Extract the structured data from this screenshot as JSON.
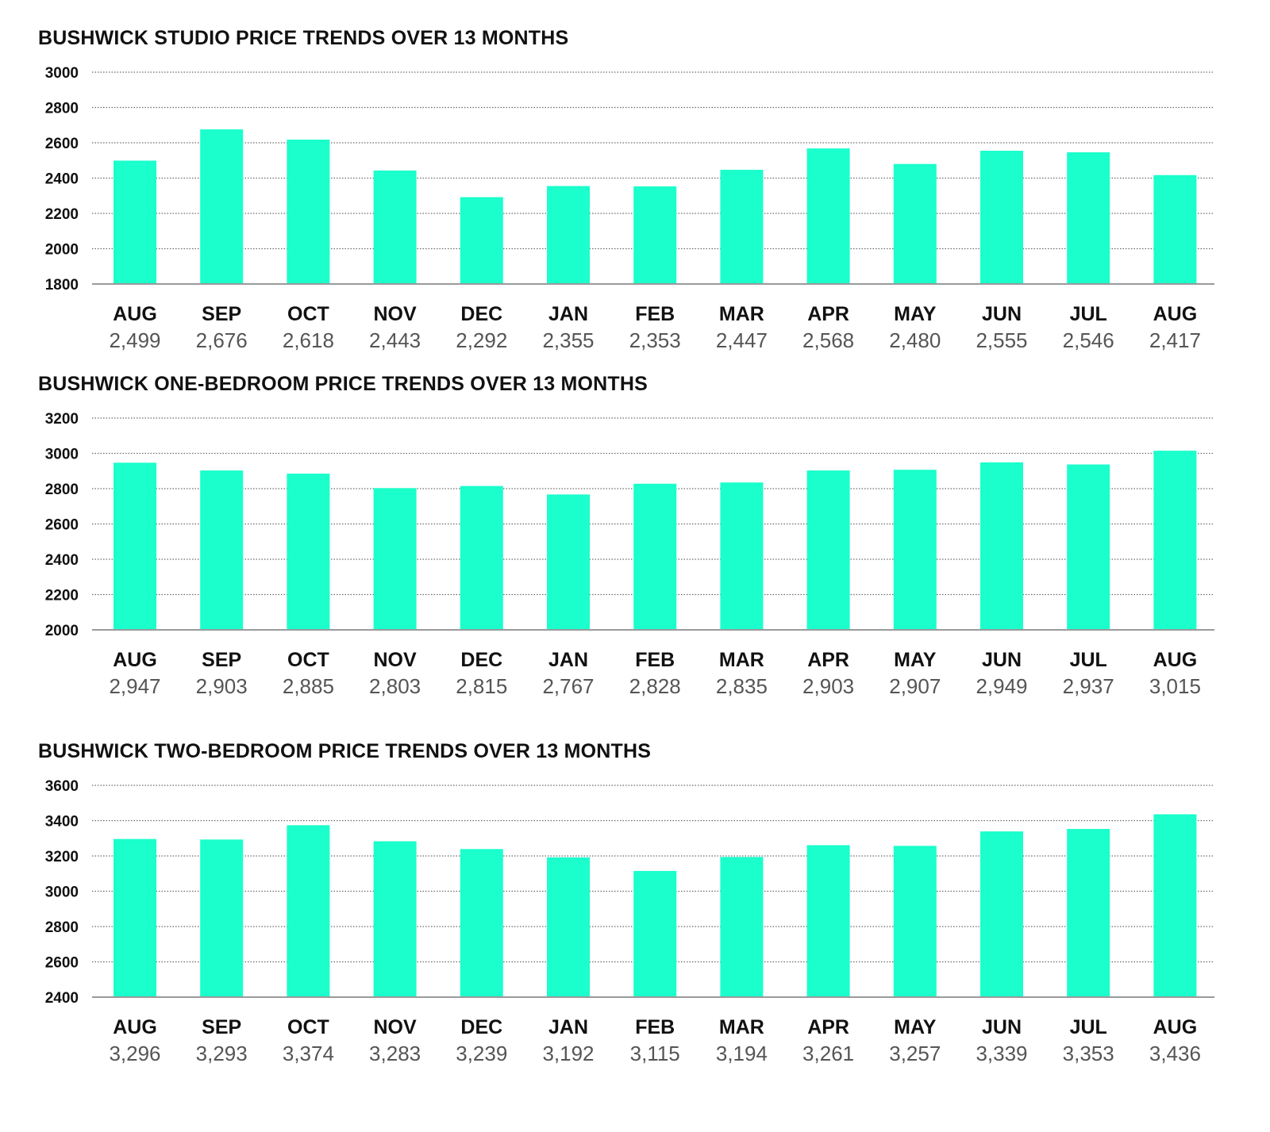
{
  "colors": {
    "bar": "#1AFFCB",
    "grid": "#6b6b6b",
    "axis": "#9a9a9a",
    "value_text": "#555555"
  },
  "chart_data": [
    {
      "type": "bar",
      "title": "BUSHWICK STUDIO PRICE TRENDS OVER 13 MONTHS",
      "categories": [
        "AUG",
        "SEP",
        "OCT",
        "NOV",
        "DEC",
        "JAN",
        "FEB",
        "MAR",
        "APR",
        "MAY",
        "JUN",
        "JUL",
        "AUG"
      ],
      "values": [
        2499,
        2676,
        2618,
        2443,
        2292,
        2355,
        2353,
        2447,
        2568,
        2480,
        2555,
        2546,
        2417
      ],
      "value_labels": [
        "2,499",
        "2,676",
        "2,618",
        "2,443",
        "2,292",
        "2,355",
        "2,353",
        "2,447",
        "2,568",
        "2,480",
        "2,555",
        "2,546",
        "2,417"
      ],
      "ylim": [
        1800,
        3000
      ],
      "yticks": [
        1800,
        2000,
        2200,
        2400,
        2600,
        2800,
        3000
      ],
      "grid": true,
      "xlabel": "",
      "ylabel": ""
    },
    {
      "type": "bar",
      "title": "BUSHWICK ONE-BEDROOM PRICE TRENDS OVER 13 MONTHS",
      "categories": [
        "AUG",
        "SEP",
        "OCT",
        "NOV",
        "DEC",
        "JAN",
        "FEB",
        "MAR",
        "APR",
        "MAY",
        "JUN",
        "JUL",
        "AUG"
      ],
      "values": [
        2947,
        2903,
        2885,
        2803,
        2815,
        2767,
        2828,
        2835,
        2903,
        2907,
        2949,
        2937,
        3015
      ],
      "value_labels": [
        "2,947",
        "2,903",
        "2,885",
        "2,803",
        "2,815",
        "2,767",
        "2,828",
        "2,835",
        "2,903",
        "2,907",
        "2,949",
        "2,937",
        "3,015"
      ],
      "ylim": [
        2000,
        3200
      ],
      "yticks": [
        2000,
        2200,
        2400,
        2600,
        2800,
        3000,
        3200
      ],
      "grid": true,
      "xlabel": "",
      "ylabel": ""
    },
    {
      "type": "bar",
      "title": "BUSHWICK TWO-BEDROOM PRICE TRENDS OVER 13 MONTHS",
      "categories": [
        "AUG",
        "SEP",
        "OCT",
        "NOV",
        "DEC",
        "JAN",
        "FEB",
        "MAR",
        "APR",
        "MAY",
        "JUN",
        "JUL",
        "AUG"
      ],
      "values": [
        3296,
        3293,
        3374,
        3283,
        3239,
        3192,
        3115,
        3194,
        3261,
        3257,
        3339,
        3353,
        3436
      ],
      "value_labels": [
        "3,296",
        "3,293",
        "3,374",
        "3,283",
        "3,239",
        "3,192",
        "3,115",
        "3,194",
        "3,261",
        "3,257",
        "3,339",
        "3,353",
        "3,436"
      ],
      "ylim": [
        2400,
        3600
      ],
      "yticks": [
        2400,
        2600,
        2800,
        3000,
        3200,
        3400,
        3600
      ],
      "grid": true,
      "xlabel": "",
      "ylabel": ""
    }
  ]
}
